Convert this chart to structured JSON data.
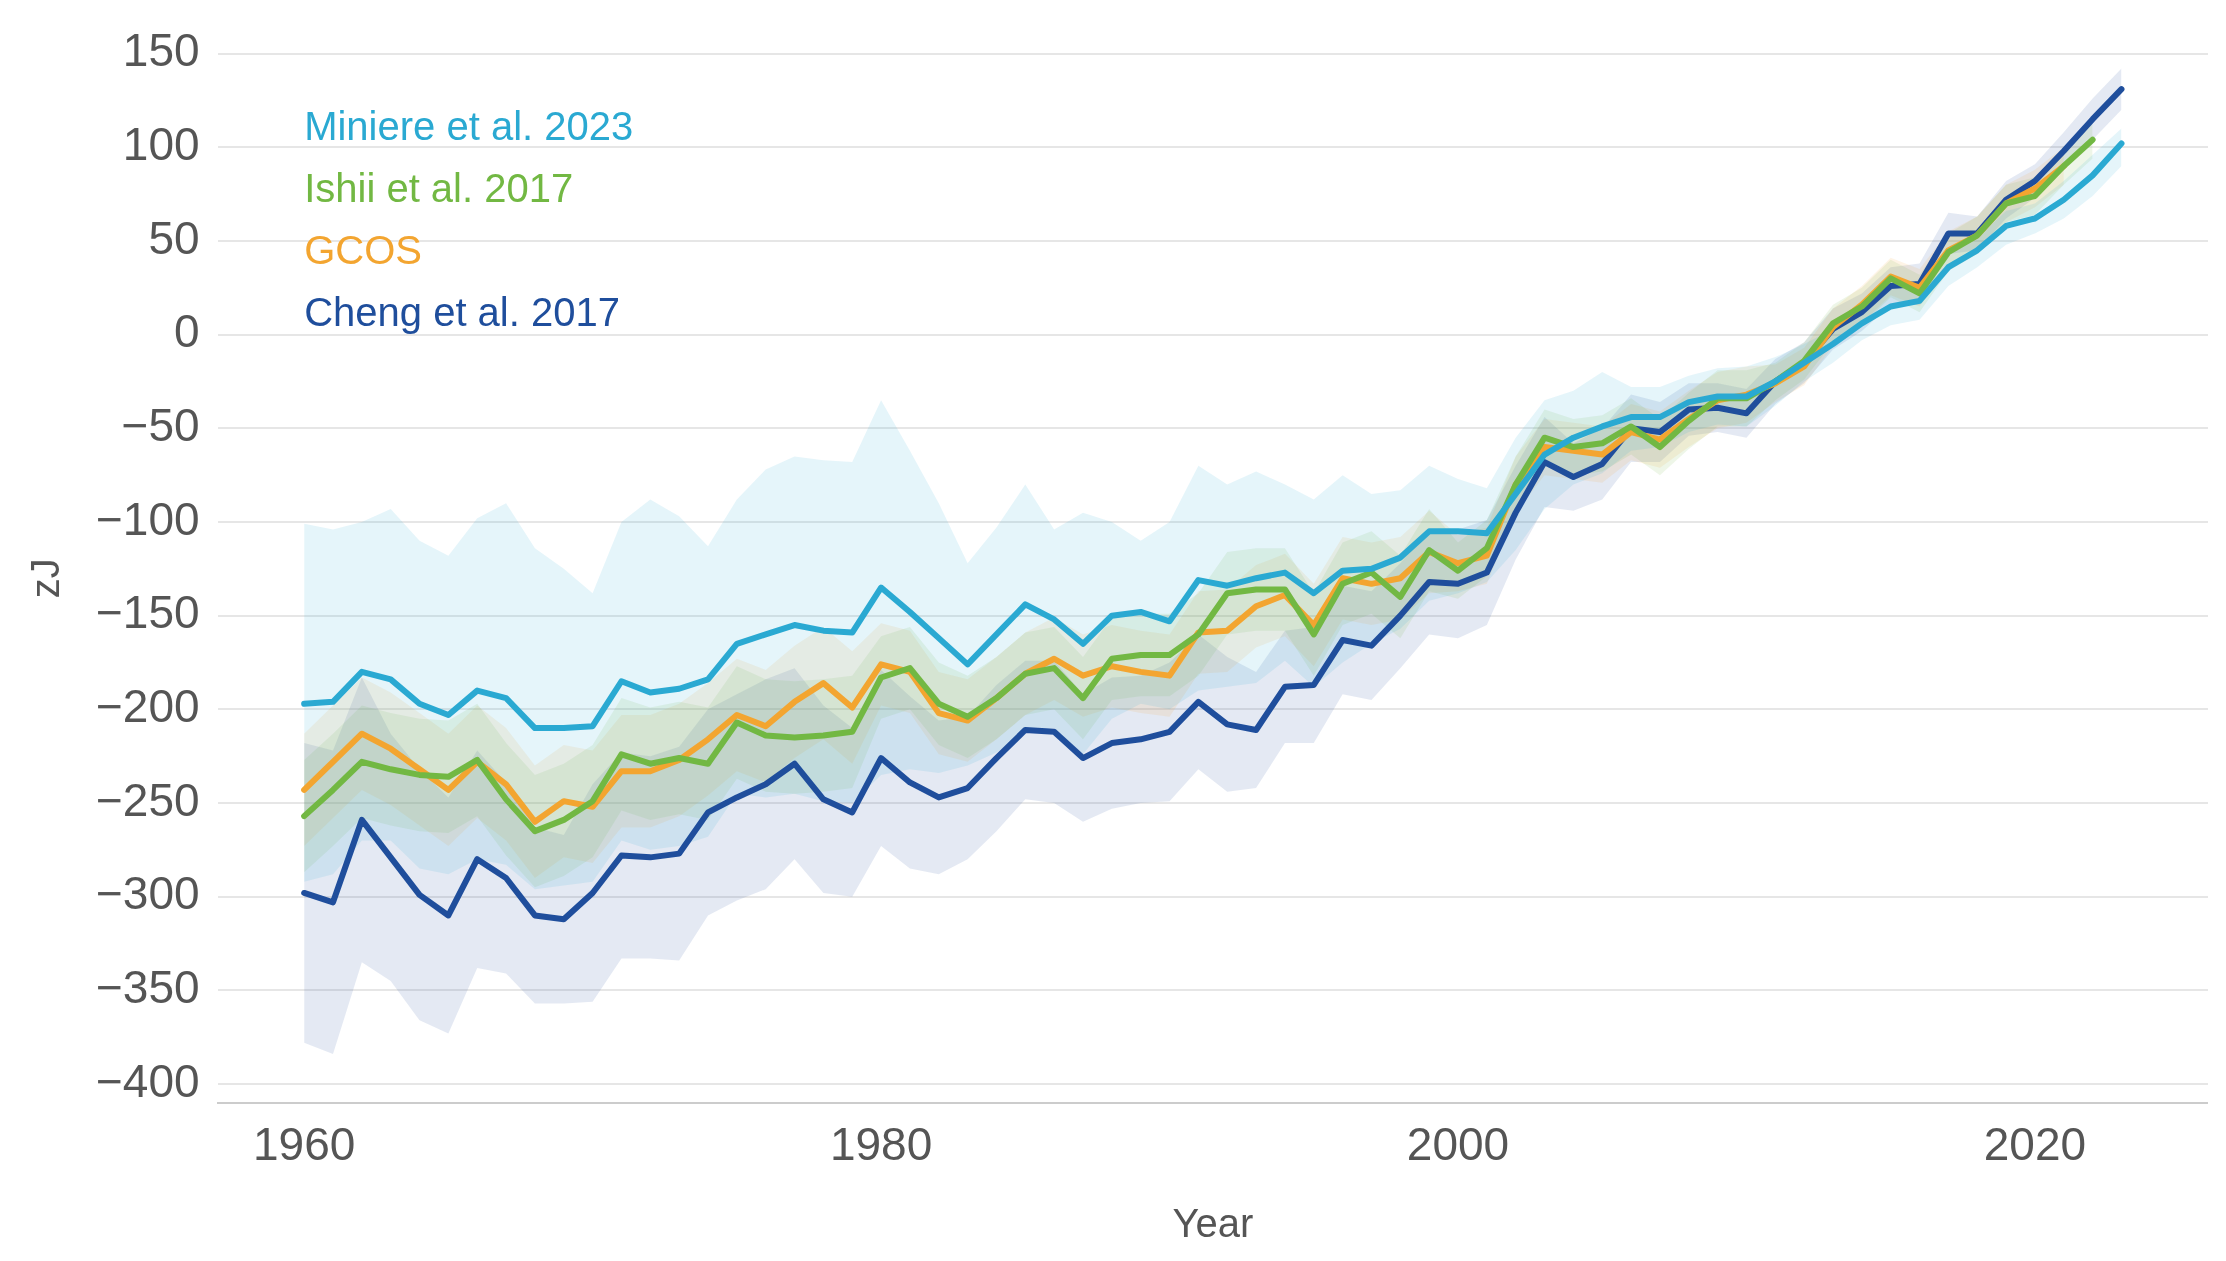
{
  "chart_data": {
    "type": "line",
    "xlabel": "Year",
    "ylabel": "zJ",
    "x": [
      1960,
      1961,
      1962,
      1963,
      1964,
      1965,
      1966,
      1967,
      1968,
      1969,
      1970,
      1971,
      1972,
      1973,
      1974,
      1975,
      1976,
      1977,
      1978,
      1979,
      1980,
      1981,
      1982,
      1983,
      1984,
      1985,
      1986,
      1987,
      1988,
      1989,
      1990,
      1991,
      1992,
      1993,
      1994,
      1995,
      1996,
      1997,
      1998,
      1999,
      2000,
      2001,
      2002,
      2003,
      2004,
      2005,
      2006,
      2007,
      2008,
      2009,
      2010,
      2011,
      2012,
      2013,
      2014,
      2015,
      2016,
      2017,
      2018,
      2019,
      2020,
      2021,
      2022,
      2023
    ],
    "series": [
      {
        "name": "Miniere et al. 2023",
        "color": "#2aa9d2",
        "values": [
          -197,
          -196,
          -180,
          -184,
          -197,
          -203,
          -190,
          -194,
          -210,
          -210,
          -209,
          -185,
          -191,
          -189,
          -184,
          -165,
          -160,
          -155,
          -158,
          -159,
          -135,
          -148,
          -162,
          -176,
          -160,
          -144,
          -152,
          -165,
          -150,
          -148,
          -153,
          -131,
          -134,
          -130,
          -127,
          -138,
          -126,
          -125,
          -119,
          -105,
          -105,
          -106,
          -85,
          -64,
          -55,
          -49,
          -44,
          -44,
          -36,
          -33,
          -33,
          -25,
          -15,
          -5,
          6,
          15,
          18,
          36,
          45,
          58,
          62,
          72,
          85,
          102
        ],
        "lower": [
          -292,
          -288,
          -270,
          -270,
          -285,
          -288,
          -280,
          -283,
          -296,
          -294,
          -292,
          -270,
          -275,
          -273,
          -268,
          -245,
          -247,
          -245,
          -249,
          -250,
          -235,
          -232,
          -234,
          -230,
          -223,
          -212,
          -210,
          -224,
          -205,
          -197,
          -200,
          -190,
          -188,
          -186,
          -174,
          -188,
          -175,
          -165,
          -157,
          -142,
          -138,
          -132,
          -115,
          -93,
          -80,
          -74,
          -62,
          -60,
          -52,
          -48,
          -49,
          -38,
          -25,
          -15,
          -3,
          5,
          8,
          26,
          36,
          48,
          54,
          62,
          74,
          90
        ],
        "upper": [
          -101,
          -104,
          -100,
          -93,
          -110,
          -118,
          -98,
          -90,
          -114,
          -125,
          -138,
          -100,
          -88,
          -97,
          -113,
          -88,
          -72,
          -65,
          -67,
          -68,
          -35,
          -62,
          -90,
          -122,
          -103,
          -80,
          -104,
          -95,
          -100,
          -110,
          -100,
          -70,
          -80,
          -73,
          -80,
          -88,
          -75,
          -85,
          -83,
          -70,
          -77,
          -82,
          -55,
          -35,
          -30,
          -20,
          -28,
          -28,
          -22,
          -18,
          -17,
          -12,
          -5,
          3,
          15,
          25,
          28,
          45,
          52,
          66,
          70,
          82,
          96,
          110
        ]
      },
      {
        "name": "Ishii et al. 2017",
        "color": "#72b843",
        "values": [
          -257,
          -243,
          -228,
          -232,
          -235,
          -236,
          -227,
          -248,
          -265,
          -259,
          -249,
          -224,
          -229,
          -226,
          -229,
          -207,
          -214,
          -215,
          -214,
          -212,
          -183,
          -178,
          -197,
          -204,
          -194,
          -181,
          -178,
          -194,
          -173,
          -171,
          -171,
          -160,
          -138,
          -136,
          -136,
          -160,
          -133,
          -127,
          -140,
          -115,
          -126,
          -114,
          -80,
          -55,
          -60,
          -58,
          -49,
          -60,
          -46,
          -34,
          -34,
          -25,
          -14,
          6,
          15,
          30,
          22,
          44,
          53,
          70,
          74,
          90,
          104,
          null
        ],
        "lower": [
          -287,
          -273,
          -258,
          -262,
          -265,
          -266,
          -257,
          -278,
          -295,
          -289,
          -279,
          -254,
          -259,
          -256,
          -259,
          -237,
          -244,
          -245,
          -244,
          -242,
          -205,
          -200,
          -219,
          -226,
          -216,
          -203,
          -200,
          -216,
          -195,
          -193,
          -193,
          -182,
          -160,
          -158,
          -158,
          -182,
          -155,
          -149,
          -162,
          -137,
          -141,
          -129,
          -95,
          -70,
          -75,
          -73,
          -64,
          -75,
          -61,
          -49,
          -49,
          -35,
          -24,
          -4,
          5,
          20,
          12,
          34,
          43,
          60,
          64,
          80,
          94,
          null
        ],
        "upper": [
          -227,
          -213,
          -198,
          -202,
          -205,
          -206,
          -197,
          -218,
          -235,
          -229,
          -219,
          -194,
          -199,
          -196,
          -199,
          -177,
          -184,
          -185,
          -184,
          -182,
          -161,
          -156,
          -175,
          -182,
          -172,
          -159,
          -156,
          -172,
          -151,
          -149,
          -149,
          -138,
          -116,
          -114,
          -114,
          -138,
          -111,
          -105,
          -118,
          -93,
          -111,
          -99,
          -65,
          -40,
          -45,
          -43,
          -34,
          -45,
          -31,
          -19,
          -19,
          -15,
          -4,
          16,
          25,
          40,
          32,
          54,
          63,
          80,
          84,
          100,
          114,
          null
        ]
      },
      {
        "name": "GCOS",
        "color": "#f3a530",
        "values": [
          -243,
          -228,
          -213,
          -221,
          -232,
          -243,
          -228,
          -240,
          -260,
          -249,
          -252,
          -233,
          -233,
          -227,
          -216,
          -203,
          -209,
          -196,
          -186,
          -199,
          -176,
          -180,
          -202,
          -206,
          -194,
          -181,
          -173,
          -182,
          -177,
          -180,
          -182,
          -159,
          -158,
          -145,
          -139,
          -155,
          -130,
          -133,
          -130,
          -116,
          -122,
          -118,
          -80,
          -60,
          -62,
          -64,
          -52,
          -56,
          -45,
          -35,
          -32,
          -26,
          -17,
          4,
          16,
          31,
          25,
          45,
          53,
          70,
          78,
          90,
          null,
          null
        ],
        "lower": [
          -273,
          -258,
          -243,
          -251,
          -262,
          -273,
          -258,
          -270,
          -290,
          -279,
          -282,
          -263,
          -263,
          -257,
          -246,
          -233,
          -239,
          -226,
          -216,
          -229,
          -198,
          -202,
          -224,
          -228,
          -216,
          -203,
          -195,
          -204,
          -199,
          -202,
          -204,
          -181,
          -180,
          -167,
          -161,
          -177,
          -152,
          -155,
          -152,
          -138,
          -137,
          -133,
          -95,
          -75,
          -77,
          -79,
          -67,
          -71,
          -60,
          -50,
          -47,
          -36,
          -27,
          -6,
          6,
          21,
          15,
          35,
          43,
          60,
          68,
          80,
          null,
          null
        ],
        "upper": [
          -213,
          -198,
          -183,
          -191,
          -202,
          -213,
          -198,
          -210,
          -230,
          -219,
          -222,
          -203,
          -203,
          -197,
          -186,
          -173,
          -179,
          -166,
          -156,
          -169,
          -154,
          -158,
          -180,
          -184,
          -172,
          -159,
          -151,
          -160,
          -155,
          -158,
          -160,
          -137,
          -136,
          -123,
          -117,
          -133,
          -108,
          -111,
          -108,
          -94,
          -107,
          -103,
          -65,
          -45,
          -47,
          -49,
          -37,
          -41,
          -30,
          -20,
          -17,
          -16,
          -7,
          14,
          26,
          41,
          35,
          55,
          63,
          80,
          88,
          100,
          null,
          null
        ]
      },
      {
        "name": "Cheng et al. 2017",
        "color": "#1f4e9c",
        "values": [
          -298,
          -303,
          -259,
          -279,
          -299,
          -310,
          -280,
          -290,
          -310,
          -312,
          -298,
          -278,
          -279,
          -277,
          -255,
          -247,
          -240,
          -229,
          -248,
          -255,
          -226,
          -239,
          -247,
          -242,
          -226,
          -211,
          -212,
          -226,
          -218,
          -216,
          -212,
          -196,
          -208,
          -211,
          -188,
          -187,
          -163,
          -166,
          -150,
          -132,
          -133,
          -127,
          -95,
          -68,
          -76,
          -69,
          -50,
          -52,
          -40,
          -39,
          -42,
          -25,
          -15,
          3,
          12,
          26,
          27,
          54,
          54,
          72,
          82,
          98,
          115,
          131
        ],
        "lower": [
          -378,
          -384,
          -335,
          -345,
          -366,
          -373,
          -338,
          -341,
          -357,
          -357,
          -356,
          -333,
          -333,
          -334,
          -310,
          -302,
          -296,
          -280,
          -298,
          -300,
          -273,
          -285,
          -288,
          -280,
          -265,
          -248,
          -250,
          -260,
          -253,
          -250,
          -249,
          -232,
          -244,
          -242,
          -218,
          -218,
          -192,
          -195,
          -178,
          -160,
          -162,
          -155,
          -120,
          -92,
          -94,
          -88,
          -68,
          -68,
          -54,
          -52,
          -55,
          -37,
          -26,
          -8,
          2,
          16,
          16,
          43,
          45,
          62,
          73,
          88,
          104,
          120
        ],
        "upper": [
          -218,
          -222,
          -183,
          -213,
          -232,
          -247,
          -222,
          -239,
          -263,
          -267,
          -240,
          -223,
          -225,
          -220,
          -200,
          -192,
          -184,
          -178,
          -198,
          -210,
          -179,
          -193,
          -206,
          -204,
          -187,
          -174,
          -174,
          -192,
          -183,
          -182,
          -175,
          -160,
          -172,
          -180,
          -158,
          -156,
          -134,
          -137,
          -122,
          -104,
          -104,
          -99,
          -70,
          -44,
          -58,
          -50,
          -32,
          -36,
          -26,
          -26,
          -29,
          -13,
          -4,
          14,
          22,
          36,
          38,
          65,
          63,
          82,
          91,
          108,
          126,
          142
        ]
      }
    ],
    "xlim": [
      1957,
      2026
    ],
    "xticks": [
      1960,
      1980,
      2000,
      2020
    ],
    "ylim": [
      -410,
      150
    ],
    "yticks": [
      {
        "value": -400,
        "label": "−400"
      },
      {
        "value": -350,
        "label": "−350"
      },
      {
        "value": -300,
        "label": "−300"
      },
      {
        "value": -250,
        "label": "−250"
      },
      {
        "value": -200,
        "label": "−200"
      },
      {
        "value": -150,
        "label": "−150"
      },
      {
        "value": -100,
        "label": "−100"
      },
      {
        "value": -50,
        "label": "−50"
      },
      0,
      50,
      100,
      150
    ],
    "grid": "y",
    "legend": "top left",
    "marker": "none",
    "line_style": "solid"
  }
}
